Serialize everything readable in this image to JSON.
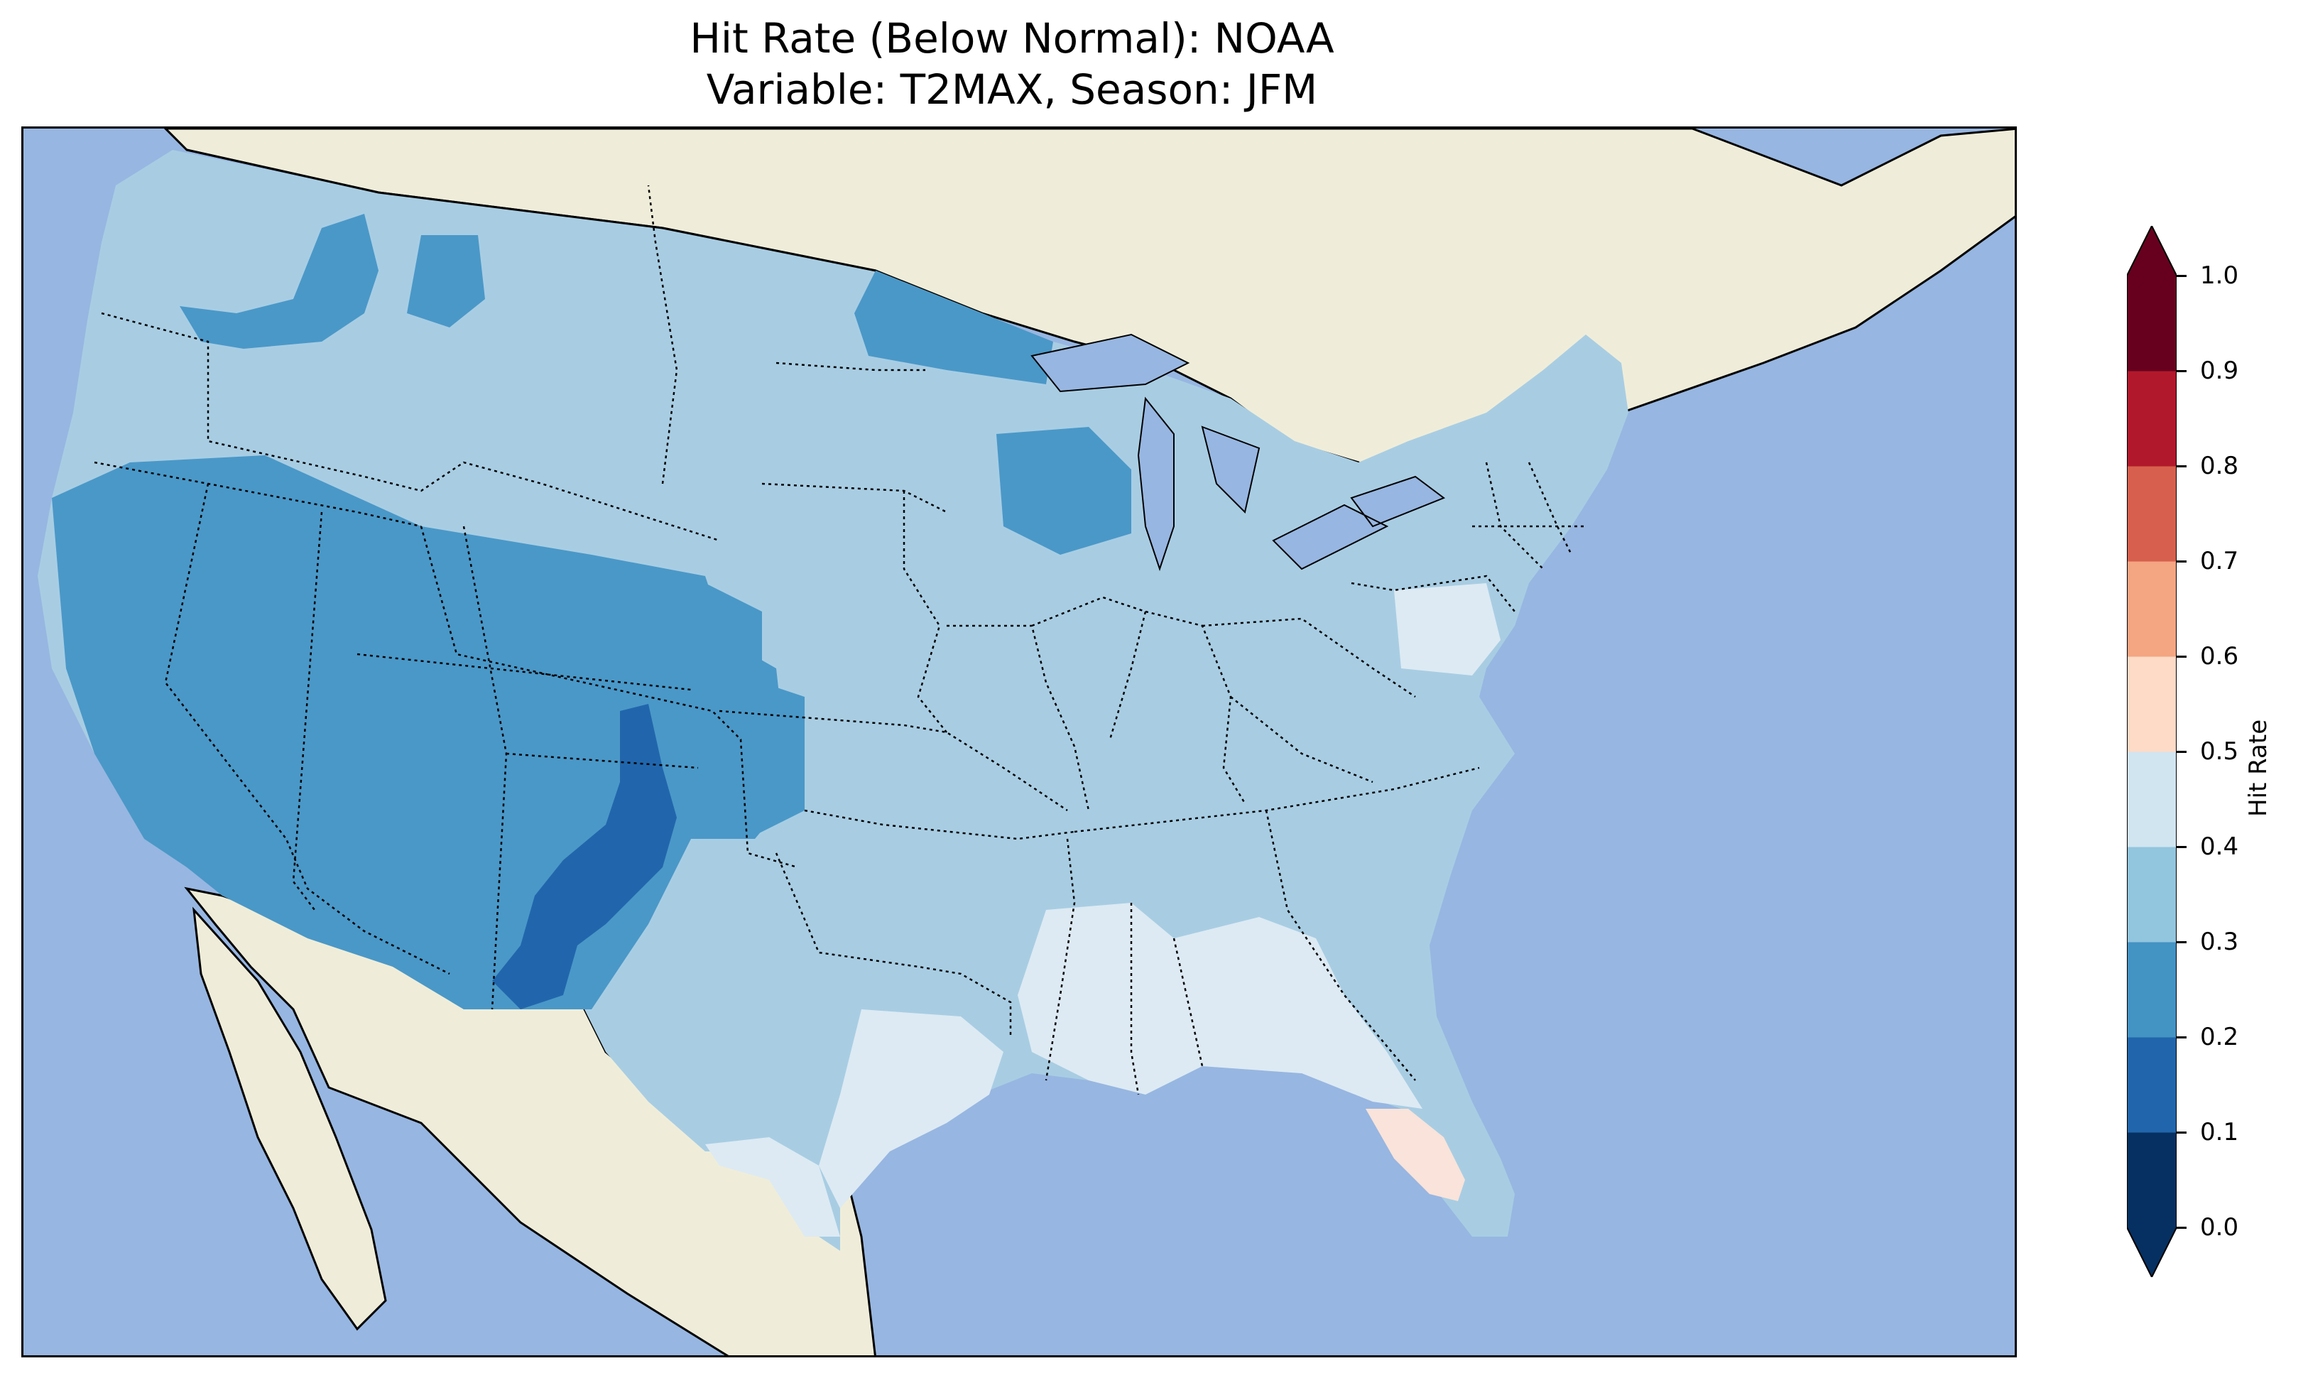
{
  "title_line_1": "Hit Rate (Below Normal): NOAA",
  "title_line_2": "Variable: T2MAX, Season: JFM",
  "colorbar": {
    "label": "Hit Rate",
    "ticks": [
      "0.0",
      "0.1",
      "0.2",
      "0.3",
      "0.4",
      "0.5",
      "0.6",
      "0.7",
      "0.8",
      "0.9",
      "1.0"
    ],
    "bins": [
      {
        "range": [
          0.0,
          0.1
        ],
        "color": "#053061"
      },
      {
        "range": [
          0.1,
          0.2
        ],
        "color": "#2166ac"
      },
      {
        "range": [
          0.2,
          0.3
        ],
        "color": "#4393c3"
      },
      {
        "range": [
          0.3,
          0.4
        ],
        "color": "#92c5de"
      },
      {
        "range": [
          0.4,
          0.5
        ],
        "color": "#d1e5f0"
      },
      {
        "range": [
          0.5,
          0.6
        ],
        "color": "#fddbc7"
      },
      {
        "range": [
          0.6,
          0.7
        ],
        "color": "#f4a582"
      },
      {
        "range": [
          0.7,
          0.8
        ],
        "color": "#d6604d"
      },
      {
        "range": [
          0.8,
          0.9
        ],
        "color": "#b2182b"
      },
      {
        "range": [
          0.9,
          1.0
        ],
        "color": "#67001f"
      }
    ],
    "extend": "both"
  },
  "map": {
    "ocean_color": "#97b6e1",
    "land_color": "#efedd9",
    "region": "Contiguous United States",
    "dominant_value_range": [
      0.3,
      0.4
    ]
  }
}
